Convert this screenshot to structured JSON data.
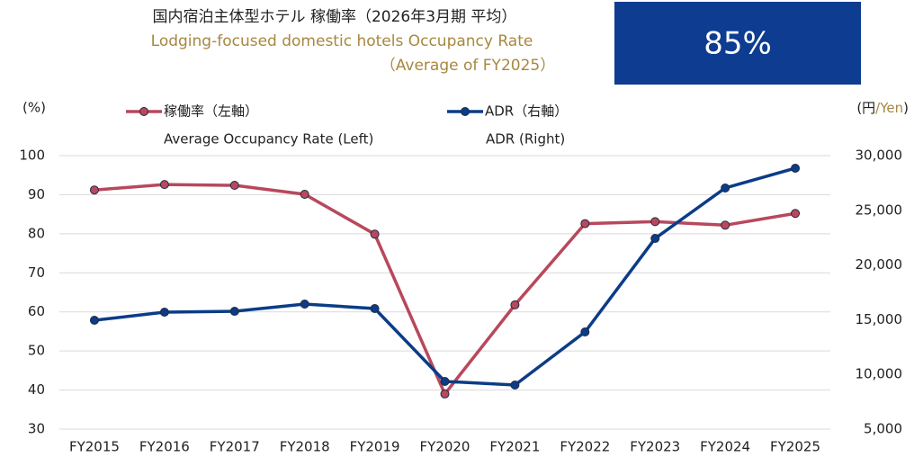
{
  "title": "国内宿泊主体型ホテル 稼働率（2026年3月期 平均）",
  "subtitle": "Lodging-focused domestic hotels Occupancy Rate",
  "subtitle2": "（Average of FY2025）",
  "highlight": "85%",
  "chart_data": {
    "type": "line",
    "ylabel": "(%)",
    "y2label": [
      "(円",
      "/Yen",
      ")"
    ],
    "categories": [
      "FY2015",
      "FY2016",
      "FY2017",
      "FY2018",
      "FY2019",
      "FY2020",
      "FY2021",
      "FY2022",
      "FY2023",
      "FY2024",
      "FY2025"
    ],
    "series": [
      {
        "name": "稼働率（左軸）",
        "name_en": "Average Occupancy Rate (Left)",
        "color": "#b8485c",
        "axis": "y",
        "values": [
          91.2,
          92.6,
          92.4,
          90.1,
          79.9,
          39.0,
          61.8,
          82.6,
          83.1,
          82.2,
          85.2
        ]
      },
      {
        "name": "ADR（右軸）",
        "name_en": "ADR (Right)",
        "color": "#0b3c87",
        "axis": "y2",
        "values": [
          14950,
          15690,
          15770,
          16430,
          16020,
          9360,
          9030,
          13880,
          22430,
          27040,
          28850
        ]
      }
    ],
    "ylim": [
      30,
      100
    ],
    "yticks": [
      30,
      40,
      50,
      60,
      70,
      80,
      90,
      100
    ],
    "y2lim": [
      5000,
      30000
    ],
    "y2ticks": [
      {
        "value": 5000,
        "label": "5,000"
      },
      {
        "value": 10000,
        "label": "10,000"
      },
      {
        "value": 15000,
        "label": "15,000"
      },
      {
        "value": 20000,
        "label": "20,000"
      },
      {
        "value": 25000,
        "label": "25,000"
      },
      {
        "value": 30000,
        "label": "30,000"
      }
    ],
    "grid": true
  }
}
